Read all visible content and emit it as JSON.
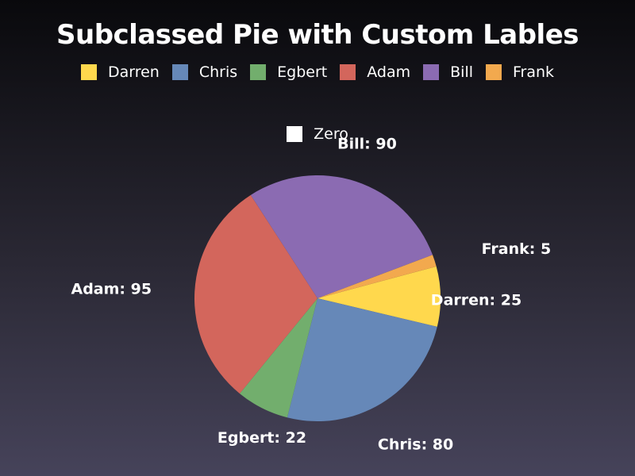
{
  "title": "Subclassed Pie with Custom Lables",
  "chart_data": {
    "type": "pie",
    "title": "Subclassed Pie with Custom Lables",
    "legend_position": "top",
    "categories": [
      "Darren",
      "Chris",
      "Egbert",
      "Adam",
      "Bill",
      "Frank",
      "Zero"
    ],
    "values": [
      25,
      80,
      22,
      95,
      90,
      5,
      0
    ],
    "colors": [
      "#ffd84d",
      "#6688b8",
      "#72ae6d",
      "#d3665c",
      "#8b6bb2",
      "#f2a94e",
      "#ffffff"
    ],
    "labels": [
      "Darren: 25",
      "Chris: 80",
      "Egbert: 22",
      "Adam: 95",
      "Bill: 90",
      "Frank: 5",
      ""
    ]
  }
}
